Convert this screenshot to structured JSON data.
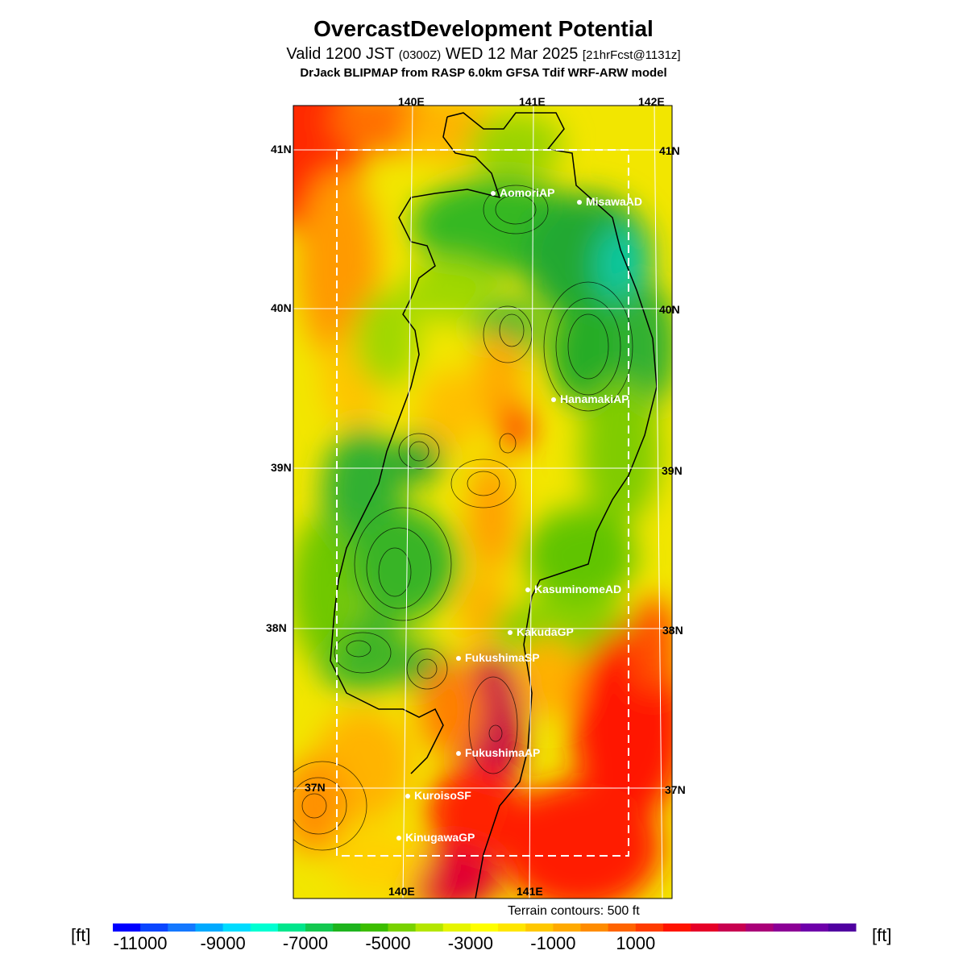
{
  "header": {
    "title": "OvercastDevelopment Potential",
    "valid_prefix": "Valid 1200 JST",
    "valid_utc": "(0300Z)",
    "valid_date": "WED 12 Mar 2025",
    "forecast": "[21hrFcst@1131z]",
    "model": "DrJack BLIPMAP from RASP 6.0km GFSA Tdif WRF-ARW model"
  },
  "map": {
    "lon_labels_top": [
      "140E",
      "141E",
      "142E"
    ],
    "lon_labels_bottom": [
      "140E",
      "141E"
    ],
    "lat_labels_left": [
      "41N",
      "40N",
      "39N",
      "38N",
      "37N"
    ],
    "lat_labels_right": [
      "41N",
      "40N",
      "39N",
      "38N",
      "37N"
    ],
    "stations": [
      {
        "name": "AomoriAP"
      },
      {
        "name": "MisawaAD"
      },
      {
        "name": "HanamakiAP"
      },
      {
        "name": "KasuminomeAD"
      },
      {
        "name": "KakudaGP"
      },
      {
        "name": "FukushimaSP"
      },
      {
        "name": "FukushimaAP"
      },
      {
        "name": "KuroisoSF"
      },
      {
        "name": "KinugawaGP"
      }
    ],
    "terrain_note": "Terrain contours: 500 ft"
  },
  "colorbar": {
    "unit_left": "[ft]",
    "unit_right": "[ft]",
    "tick_labels": [
      "-11000",
      "-9000",
      "-7000",
      "-5000",
      "-3000",
      "-1000",
      "1000"
    ],
    "colors": [
      "#0000ff",
      "#0a46ff",
      "#1478ff",
      "#00aaff",
      "#00dcff",
      "#00ffd2",
      "#00e68c",
      "#14c850",
      "#1eb41e",
      "#3cbe00",
      "#78d200",
      "#b4e600",
      "#e6f500",
      "#ffff00",
      "#ffe600",
      "#ffc800",
      "#ffaa00",
      "#ff8c00",
      "#ff6400",
      "#ff3c00",
      "#ff1400",
      "#e60028",
      "#c80050",
      "#aa0078",
      "#8c0096",
      "#6e00aa",
      "#5000a0"
    ]
  }
}
